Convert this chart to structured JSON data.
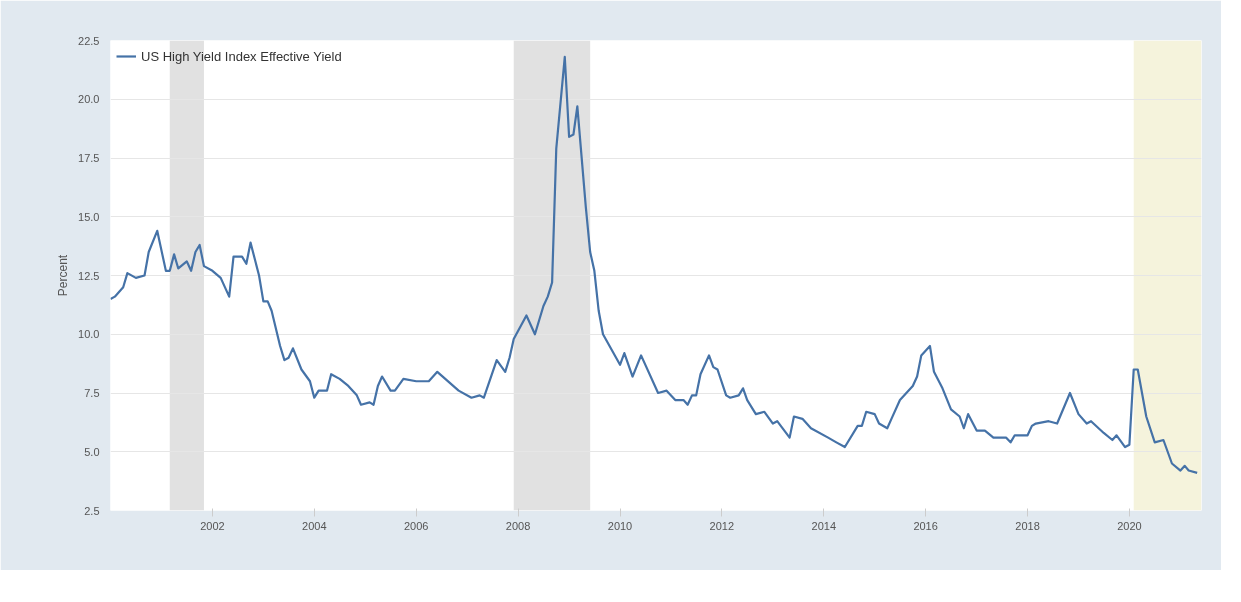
{
  "chart_data": {
    "type": "line",
    "ylabel": "Percent",
    "legend": "top left",
    "grid": "y",
    "line_style": "solid",
    "xlim": [
      "2000-01",
      "2021-06"
    ],
    "xticks": [
      "2002",
      "2004",
      "2006",
      "2008",
      "2010",
      "2012",
      "2014",
      "2016",
      "2018",
      "2020"
    ],
    "ylim": [
      2.5,
      22.5
    ],
    "yticks": [
      2.5,
      {
        "value": 5,
        "label": "5.0"
      },
      7.5,
      {
        "value": 10,
        "label": "10.0"
      },
      12.5,
      {
        "value": 15,
        "label": "15.0"
      },
      17.5,
      {
        "value": 20,
        "label": "20.0"
      },
      22.5
    ],
    "bands": [
      {
        "axis": "x",
        "from": "2001-03",
        "to": "2001-11",
        "color": "#e1e1e1"
      },
      {
        "axis": "x",
        "from": "2007-12",
        "to": "2009-06",
        "color": "#e1e1e1"
      },
      {
        "axis": "x",
        "from": "2020-02",
        "to": "2021-06",
        "color": "#f5f3dc"
      }
    ],
    "x": [
      "2000-01",
      "2000-02",
      "2000-04",
      "2000-05",
      "2000-07",
      "2000-09",
      "2000-10",
      "2000-12",
      "2001-02",
      "2001-03",
      "2001-04",
      "2001-05",
      "2001-07",
      "2001-08",
      "2001-09",
      "2001-10",
      "2001-11",
      "2002-01",
      "2002-03",
      "2002-05",
      "2002-06",
      "2002-08",
      "2002-09",
      "2002-10",
      "2002-12",
      "2003-01",
      "2003-02",
      "2003-03",
      "2003-05",
      "2003-06",
      "2003-07",
      "2003-08",
      "2003-10",
      "2003-12",
      "2004-01",
      "2004-02",
      "2004-04",
      "2004-05",
      "2004-07",
      "2004-09",
      "2004-11",
      "2004-12",
      "2005-02",
      "2005-03",
      "2005-04",
      "2005-05",
      "2005-07",
      "2005-08",
      "2005-10",
      "2006-01",
      "2006-04",
      "2006-06",
      "2006-11",
      "2007-02",
      "2007-04",
      "2007-05",
      "2007-08",
      "2007-10",
      "2007-11",
      "2007-12",
      "2008-03",
      "2008-05",
      "2008-07",
      "2008-08",
      "2008-09",
      "2008-10",
      "2008-12",
      "2009-01",
      "2009-02",
      "2009-03",
      "2009-05",
      "2009-06",
      "2009-07",
      "2009-08",
      "2009-09",
      "2010-01",
      "2010-02",
      "2010-04",
      "2010-06",
      "2010-10",
      "2010-12",
      "2011-02",
      "2011-04",
      "2011-05",
      "2011-06",
      "2011-07",
      "2011-08",
      "2011-10",
      "2011-11",
      "2011-12",
      "2012-02",
      "2012-03",
      "2012-05",
      "2012-06",
      "2012-07",
      "2012-09",
      "2012-11",
      "2013-01",
      "2013-02",
      "2013-05",
      "2013-06",
      "2013-08",
      "2013-10",
      "2014-02",
      "2014-04",
      "2014-06",
      "2014-09",
      "2014-10",
      "2014-11",
      "2015-01",
      "2015-02",
      "2015-04",
      "2015-05",
      "2015-07",
      "2015-10",
      "2015-11",
      "2015-12",
      "2016-02",
      "2016-03",
      "2016-05",
      "2016-07",
      "2016-09",
      "2016-10",
      "2016-11",
      "2017-01",
      "2017-03",
      "2017-05",
      "2017-08",
      "2017-09",
      "2017-10",
      "2018-01",
      "2018-02",
      "2018-03",
      "2018-06",
      "2018-08",
      "2018-11",
      "2019-01",
      "2019-03",
      "2019-04",
      "2019-07",
      "2019-09",
      "2019-10",
      "2019-12",
      "2020-01",
      "2020-02",
      "2020-03",
      "2020-05",
      "2020-07",
      "2020-09",
      "2020-11",
      "2021-01",
      "2021-02",
      "2021-03",
      "2021-05"
    ],
    "series": [
      {
        "name": "US High Yield Index Effective Yield",
        "color": "#4572a7",
        "values": [
          11.5,
          11.6,
          12.0,
          12.6,
          12.4,
          12.5,
          13.5,
          14.4,
          12.7,
          12.7,
          13.4,
          12.8,
          13.1,
          12.7,
          13.5,
          13.8,
          12.9,
          12.7,
          12.4,
          11.6,
          13.3,
          13.3,
          13.0,
          13.9,
          12.5,
          11.4,
          11.4,
          11.0,
          9.5,
          8.9,
          9.0,
          9.4,
          8.5,
          8.0,
          7.3,
          7.6,
          7.6,
          8.3,
          8.1,
          7.8,
          7.4,
          7.0,
          7.1,
          7.0,
          7.8,
          8.2,
          7.6,
          7.6,
          8.1,
          8.0,
          8.0,
          8.4,
          7.6,
          7.3,
          7.4,
          7.3,
          8.9,
          8.4,
          9.0,
          9.8,
          10.8,
          10.0,
          11.2,
          11.6,
          12.2,
          17.9,
          21.8,
          18.4,
          18.5,
          19.7,
          15.4,
          13.5,
          12.7,
          11.0,
          10.0,
          8.7,
          9.2,
          8.2,
          9.1,
          7.5,
          7.6,
          7.2,
          7.2,
          7.0,
          7.4,
          7.4,
          8.3,
          9.1,
          8.6,
          8.5,
          7.4,
          7.3,
          7.4,
          7.7,
          7.2,
          6.6,
          6.7,
          6.2,
          6.3,
          5.6,
          6.5,
          6.4,
          6.0,
          5.6,
          5.4,
          5.2,
          6.1,
          6.1,
          6.7,
          6.6,
          6.2,
          6.0,
          6.4,
          7.2,
          7.8,
          8.2,
          9.1,
          9.5,
          8.4,
          7.7,
          6.8,
          6.5,
          6.0,
          6.6,
          5.9,
          5.9,
          5.6,
          5.6,
          5.4,
          5.7,
          5.7,
          6.1,
          6.2,
          6.3,
          6.2,
          7.5,
          6.6,
          6.2,
          6.3,
          5.8,
          5.5,
          5.7,
          5.2,
          5.3,
          8.5,
          8.5,
          6.5,
          5.4,
          5.5,
          4.5,
          4.2,
          4.4,
          4.2,
          4.1
        ]
      }
    ]
  }
}
